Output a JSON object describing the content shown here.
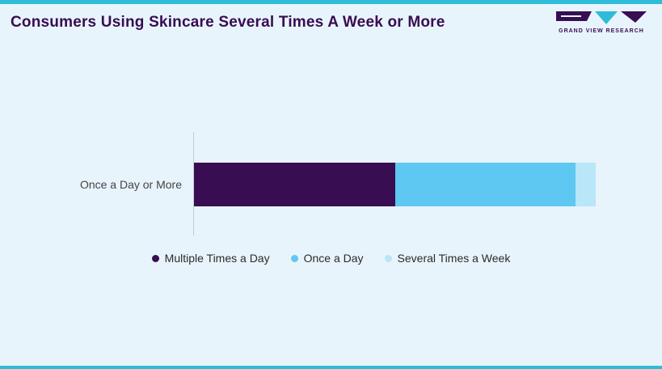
{
  "page": {
    "title": "Consumers Using Skincare Several Times A Week or More",
    "brand": {
      "name": "GRAND VIEW RESEARCH"
    }
  },
  "chart_data": {
    "type": "bar",
    "orientation": "horizontal",
    "stacked": true,
    "title": "Consumers Using Skincare Several Times A Week or More",
    "categories": [
      "Once a Day or More"
    ],
    "series": [
      {
        "name": "Multiple Times a Day",
        "values": [
          50
        ],
        "color": "#380d52"
      },
      {
        "name": "Once a Day",
        "values": [
          45
        ],
        "color": "#5ec8f2"
      },
      {
        "name": "Several Times a Week",
        "values": [
          5
        ],
        "color": "#b9e6f9"
      }
    ],
    "xlabel": "",
    "ylabel": "",
    "xlim": [
      0,
      100
    ],
    "grid": false,
    "legend_position": "bottom"
  },
  "colors": {
    "accent_cyan": "#2fbcd9",
    "background": "#e8f4fb",
    "title_purple": "#380d52",
    "label_text": "#454545"
  }
}
